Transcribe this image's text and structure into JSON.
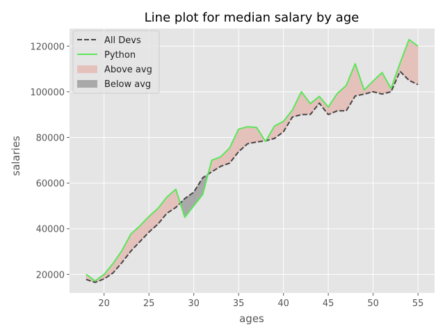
{
  "chart_data": {
    "type": "line",
    "title": "Line plot for median salary by age",
    "xlabel": "ages",
    "ylabel": "salaries",
    "xlim": [
      16.15,
      56.85
    ],
    "ylim": [
      11870,
      127700
    ],
    "xticks": [
      20,
      25,
      30,
      35,
      40,
      45,
      50,
      55
    ],
    "yticks": [
      20000,
      40000,
      60000,
      80000,
      100000,
      120000
    ],
    "grid": true,
    "legend_position": "top-left",
    "x": [
      18,
      19,
      20,
      21,
      22,
      23,
      24,
      25,
      26,
      27,
      28,
      29,
      30,
      31,
      32,
      33,
      34,
      35,
      36,
      37,
      38,
      39,
      40,
      41,
      42,
      43,
      44,
      45,
      46,
      47,
      48,
      49,
      50,
      51,
      52,
      53,
      54,
      55
    ],
    "series": [
      {
        "name": "All Devs",
        "style": "dashed",
        "color": "#444444",
        "values": [
          17784,
          16500,
          18012,
          20628,
          25206,
          30252,
          34368,
          38496,
          42000,
          46752,
          49320,
          53200,
          56000,
          62316,
          64928,
          67317,
          68748,
          73752,
          77232,
          78000,
          78508,
          79536,
          82488,
          88935,
          90000,
          90056,
          95000,
          90000,
          91633,
          91660,
          98150,
          98964,
          100000,
          98988,
          100000,
          108923,
          105000,
          103117
        ]
      },
      {
        "name": "Python",
        "style": "solid",
        "color": "#5ae65a",
        "values": [
          20046,
          17100,
          20000,
          24744,
          30500,
          37732,
          41247,
          45372,
          48876,
          53850,
          57287,
          45000,
          50000,
          55000,
          70000,
          71496,
          75370,
          83640,
          84666,
          84392,
          78254,
          85000,
          87038,
          91991,
          100000,
          94796,
          97962,
          93302,
          99240,
          102736,
          112285,
          100771,
          104708,
          108423,
          101407,
          112542,
          122870,
          120000
        ]
      }
    ],
    "fills": [
      {
        "name": "Above avg",
        "color": "#e5c1bc"
      },
      {
        "name": "Below avg",
        "color": "#a9a9a9"
      }
    ],
    "colors": {
      "background": "#e5e5e5",
      "grid": "#ffffff",
      "spine": "#ffffff"
    }
  }
}
